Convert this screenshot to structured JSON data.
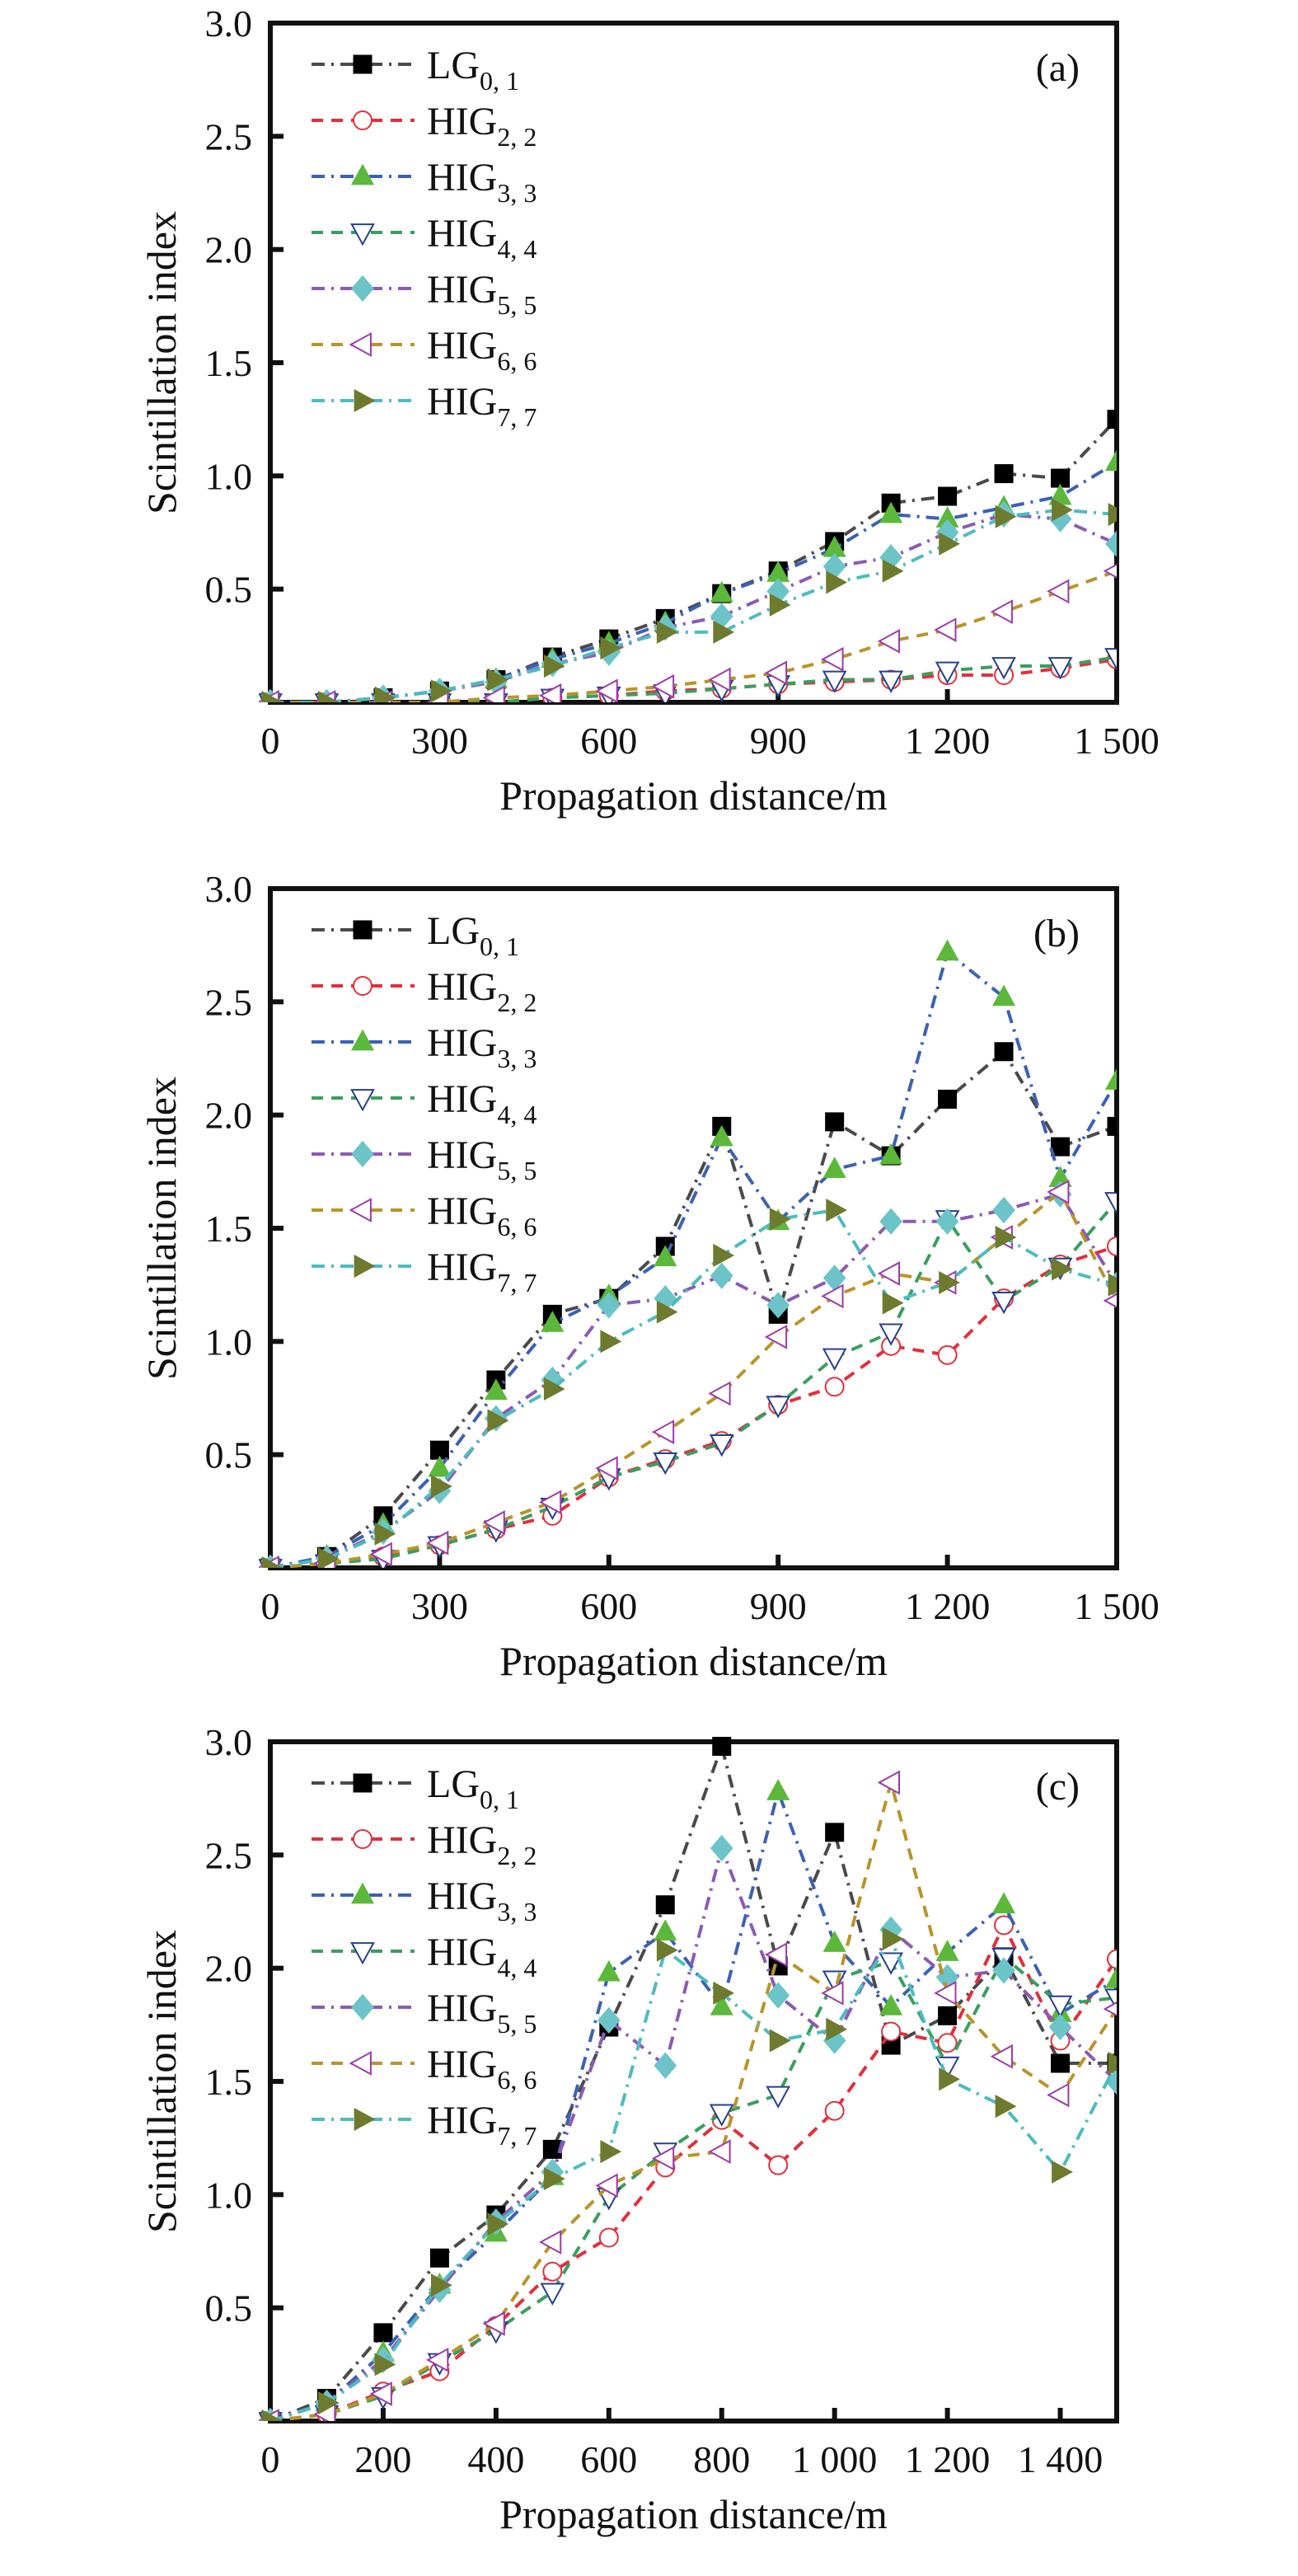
{
  "chart_data": [
    {
      "type": "line",
      "panel_label": "(a)",
      "xlabel": "Propagation distance/m",
      "ylabel": "Scintillation index",
      "xlim": [
        0,
        1500
      ],
      "ylim": [
        0,
        3.0
      ],
      "xticks": [
        0,
        300,
        600,
        900,
        1200,
        1500
      ],
      "xtick_labels": [
        "0",
        "300",
        "600",
        "900",
        "1 200",
        "1 500"
      ],
      "yticks": [
        0.5,
        1.0,
        1.5,
        2.0,
        2.5,
        3.0
      ],
      "ytick_labels": [
        "0.5",
        "1.0",
        "1.5",
        "2.0",
        "2.5",
        "3.0"
      ],
      "grid": false,
      "legend_position": "top-left",
      "x": [
        0,
        100,
        200,
        300,
        400,
        500,
        600,
        700,
        800,
        900,
        1000,
        1100,
        1200,
        1300,
        1400,
        1500
      ],
      "series": [
        {
          "name": "LG",
          "sub": "0, 1",
          "values": [
            0,
            0,
            0.02,
            0.05,
            0.1,
            0.2,
            0.28,
            0.37,
            0.48,
            0.58,
            0.71,
            0.88,
            0.91,
            1.01,
            0.99,
            1.25
          ]
        },
        {
          "name": "HIG",
          "sub": "2, 2",
          "values": [
            0,
            0,
            0,
            0,
            0,
            0.02,
            0.03,
            0.05,
            0.06,
            0.08,
            0.09,
            0.1,
            0.12,
            0.12,
            0.15,
            0.19
          ]
        },
        {
          "name": "HIG",
          "sub": "3, 3",
          "values": [
            0,
            0,
            0.02,
            0.05,
            0.1,
            0.19,
            0.26,
            0.35,
            0.48,
            0.57,
            0.68,
            0.83,
            0.81,
            0.86,
            0.91,
            1.06
          ]
        },
        {
          "name": "HIG",
          "sub": "4, 4",
          "values": [
            0,
            0,
            0,
            0,
            0,
            0.02,
            0.03,
            0.04,
            0.06,
            0.08,
            0.1,
            0.1,
            0.14,
            0.16,
            0.16,
            0.2
          ]
        },
        {
          "name": "HIG",
          "sub": "5, 5",
          "values": [
            0,
            0,
            0.02,
            0.05,
            0.09,
            0.17,
            0.22,
            0.33,
            0.38,
            0.49,
            0.6,
            0.64,
            0.75,
            0.83,
            0.81,
            0.7
          ]
        },
        {
          "name": "HIG",
          "sub": "6, 6",
          "values": [
            0,
            0,
            0,
            0,
            0.02,
            0.03,
            0.05,
            0.07,
            0.1,
            0.13,
            0.19,
            0.27,
            0.32,
            0.4,
            0.49,
            0.58
          ]
        },
        {
          "name": "HIG",
          "sub": "7, 7",
          "values": [
            0,
            0,
            0.02,
            0.05,
            0.1,
            0.16,
            0.24,
            0.31,
            0.31,
            0.43,
            0.53,
            0.58,
            0.7,
            0.82,
            0.85,
            0.83
          ]
        }
      ]
    },
    {
      "type": "line",
      "panel_label": "(b)",
      "xlabel": "Propagation distance/m",
      "ylabel": "Scintillation index",
      "xlim": [
        0,
        1500
      ],
      "ylim": [
        0,
        3.0
      ],
      "xticks": [
        0,
        300,
        600,
        900,
        1200,
        1500
      ],
      "xtick_labels": [
        "0",
        "300",
        "600",
        "900",
        "1 200",
        "1 500"
      ],
      "yticks": [
        0.5,
        1.0,
        1.5,
        2.0,
        2.5,
        3.0
      ],
      "ytick_labels": [
        "0.5",
        "1.0",
        "1.5",
        "2.0",
        "2.5",
        "3.0"
      ],
      "grid": false,
      "legend_position": "top-left",
      "x": [
        0,
        100,
        200,
        300,
        400,
        500,
        600,
        700,
        800,
        900,
        1000,
        1100,
        1200,
        1300,
        1400,
        1500
      ],
      "series": [
        {
          "name": "LG",
          "sub": "0, 1",
          "values": [
            0,
            0.05,
            0.23,
            0.52,
            0.83,
            1.12,
            1.19,
            1.42,
            1.95,
            1.12,
            1.97,
            1.82,
            2.07,
            2.28,
            1.86,
            1.95
          ]
        },
        {
          "name": "HIG",
          "sub": "2, 2",
          "values": [
            0,
            0.02,
            0.05,
            0.1,
            0.17,
            0.23,
            0.4,
            0.48,
            0.56,
            0.72,
            0.8,
            0.98,
            0.94,
            1.19,
            1.34,
            1.42
          ]
        },
        {
          "name": "HIG",
          "sub": "3, 3",
          "values": [
            0,
            0.05,
            0.19,
            0.44,
            0.78,
            1.08,
            1.2,
            1.37,
            1.9,
            1.53,
            1.76,
            1.82,
            2.72,
            2.52,
            1.72,
            2.15
          ]
        },
        {
          "name": "HIG",
          "sub": "4, 4",
          "values": [
            0,
            0.02,
            0.04,
            0.1,
            0.17,
            0.27,
            0.4,
            0.47,
            0.55,
            0.72,
            0.93,
            1.04,
            1.54,
            1.18,
            1.33,
            1.62
          ]
        },
        {
          "name": "HIG",
          "sub": "5, 5",
          "values": [
            0,
            0.04,
            0.16,
            0.34,
            0.66,
            0.83,
            1.16,
            1.19,
            1.29,
            1.16,
            1.28,
            1.53,
            1.53,
            1.58,
            1.65,
            1.25
          ]
        },
        {
          "name": "HIG",
          "sub": "6, 6",
          "values": [
            0,
            0.02,
            0.06,
            0.11,
            0.2,
            0.29,
            0.44,
            0.6,
            0.77,
            1.02,
            1.2,
            1.3,
            1.26,
            1.46,
            1.66,
            1.18
          ]
        },
        {
          "name": "HIG",
          "sub": "7, 7",
          "values": [
            0,
            0.04,
            0.15,
            0.36,
            0.65,
            0.79,
            1.0,
            1.13,
            1.38,
            1.54,
            1.58,
            1.17,
            1.26,
            1.46,
            1.32,
            1.25
          ]
        }
      ]
    },
    {
      "type": "line",
      "panel_label": "(c)",
      "xlabel": "Propagation distance/m",
      "ylabel": "Scintillation index",
      "xlim": [
        0,
        1500
      ],
      "ylim": [
        0,
        3.0
      ],
      "xticks": [
        0,
        200,
        400,
        600,
        800,
        1000,
        1200,
        1400
      ],
      "xtick_labels": [
        "0",
        "200",
        "400",
        "600",
        "800",
        "1 000",
        "1 200",
        "1 400"
      ],
      "yticks": [
        0.5,
        1.0,
        1.5,
        2.0,
        2.5,
        3.0
      ],
      "ytick_labels": [
        "0.5",
        "1.0",
        "1.5",
        "2.0",
        "2.5",
        "3.0"
      ],
      "grid": false,
      "legend_position": "top-left",
      "x": [
        0,
        100,
        200,
        300,
        400,
        500,
        600,
        700,
        800,
        900,
        1000,
        1100,
        1200,
        1300,
        1400,
        1500
      ],
      "series": [
        {
          "name": "LG",
          "sub": "0, 1",
          "values": [
            0,
            0.1,
            0.39,
            0.72,
            0.91,
            1.2,
            1.74,
            2.28,
            2.98,
            2.01,
            2.6,
            1.66,
            1.79,
            2.05,
            1.58,
            1.58
          ]
        },
        {
          "name": "HIG",
          "sub": "2, 2",
          "values": [
            0,
            0.03,
            0.13,
            0.22,
            0.42,
            0.66,
            0.81,
            1.12,
            1.33,
            1.13,
            1.37,
            1.72,
            1.67,
            2.19,
            1.68,
            2.04
          ]
        },
        {
          "name": "HIG",
          "sub": "3, 3",
          "values": [
            0,
            0.08,
            0.3,
            0.6,
            0.83,
            1.08,
            1.98,
            2.16,
            1.83,
            2.78,
            2.11,
            1.83,
            2.07,
            2.28,
            1.8,
            1.95
          ]
        },
        {
          "name": "HIG",
          "sub": "4, 4",
          "values": [
            0,
            0.03,
            0.11,
            0.26,
            0.4,
            0.57,
            0.99,
            1.19,
            1.36,
            1.44,
            1.95,
            2.03,
            1.57,
            2.05,
            1.84,
            1.87
          ]
        },
        {
          "name": "HIG",
          "sub": "5, 5",
          "values": [
            0,
            0.08,
            0.27,
            0.58,
            0.88,
            1.1,
            1.77,
            1.57,
            2.53,
            1.88,
            1.68,
            2.17,
            1.96,
            1.99,
            1.74,
            1.5
          ]
        },
        {
          "name": "HIG",
          "sub": "6, 6",
          "values": [
            0,
            0.03,
            0.12,
            0.27,
            0.43,
            0.79,
            1.04,
            1.16,
            1.19,
            2.06,
            1.89,
            2.82,
            1.89,
            1.61,
            1.44,
            1.82
          ]
        },
        {
          "name": "HIG",
          "sub": "7, 7",
          "values": [
            0,
            0.08,
            0.25,
            0.6,
            0.87,
            1.07,
            1.19,
            2.08,
            1.89,
            1.68,
            1.73,
            2.13,
            1.51,
            1.39,
            1.1,
            1.58
          ]
        }
      ]
    }
  ],
  "series_style": [
    {
      "line_color": "#4a4a4a",
      "marker": "square",
      "marker_fill": "#000000",
      "marker_stroke": "#000000",
      "dash": "dash-dot"
    },
    {
      "line_color": "#e0303c",
      "marker": "circle-open",
      "marker_fill": "#ffffff",
      "marker_stroke": "#e0303c",
      "dash": "dash"
    },
    {
      "line_color": "#3a62b4",
      "marker": "triangle-up",
      "marker_fill": "#5cb83a",
      "marker_stroke": "#5cb83a",
      "dash": "dash-dot"
    },
    {
      "line_color": "#3a9e5e",
      "marker": "triangle-down-open",
      "marker_fill": "#ffffff",
      "marker_stroke": "#27408b",
      "dash": "dash"
    },
    {
      "line_color": "#8c5ab4",
      "marker": "diamond",
      "marker_fill": "#6cc4c8",
      "marker_stroke": "#6cc4c8",
      "dash": "dash-dot"
    },
    {
      "line_color": "#b8942a",
      "marker": "triangle-left-open",
      "marker_fill": "#ffffff",
      "marker_stroke": "#9c3ca8",
      "dash": "dash"
    },
    {
      "line_color": "#4cbcc0",
      "marker": "triangle-right",
      "marker_fill": "#6e7a2e",
      "marker_stroke": "#6e7a2e",
      "dash": "dash-dot"
    }
  ]
}
